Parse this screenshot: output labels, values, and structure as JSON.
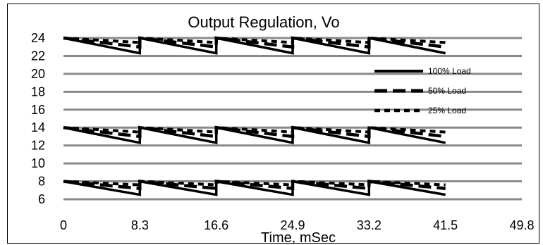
{
  "chart_data": {
    "type": "line",
    "title": "Output Regulation, Vo",
    "xlabel": "Time, mSec",
    "ylabel": "",
    "xlim": [
      0,
      49.8
    ],
    "ylim": [
      6,
      24
    ],
    "x_ticks": [
      "0",
      "8.3",
      "16.6",
      "24.9",
      "33.2",
      "41.5",
      "49.8"
    ],
    "y_ticks": [
      "6",
      "8",
      "10",
      "12",
      "14",
      "16",
      "18",
      "20",
      "22",
      "24"
    ],
    "grid": true,
    "legend_position": "right",
    "series": [
      {
        "name": "100% Load",
        "style": "solid",
        "color": "#000000",
        "segments": [
          {
            "x": [
              0,
              8.3,
              8.3,
              16.6,
              16.6,
              24.9,
              24.9,
              33.2,
              33.2,
              41.5
            ],
            "y": [
              24,
              22.3,
              24,
              22.3,
              24,
              22.3,
              24,
              22.3,
              24,
              22.3
            ]
          },
          {
            "x": [
              0,
              8.3,
              8.3,
              16.6,
              16.6,
              24.9,
              24.9,
              33.2,
              33.2,
              41.5
            ],
            "y": [
              14,
              12.3,
              14,
              12.3,
              14,
              12.3,
              14,
              12.3,
              14,
              12.3
            ]
          },
          {
            "x": [
              0,
              8.3,
              8.3,
              16.6,
              16.6,
              24.9,
              24.9,
              33.2,
              33.2,
              41.5
            ],
            "y": [
              8,
              6.5,
              8,
              6.5,
              8,
              6.5,
              8,
              6.5,
              8,
              6.5
            ]
          }
        ]
      },
      {
        "name": "50% Load",
        "style": "dashed",
        "color": "#000000",
        "segments": [
          {
            "x": [
              0,
              8.3,
              8.3,
              16.6,
              16.6,
              24.9,
              24.9,
              33.2,
              33.2,
              41.5
            ],
            "y": [
              24,
              23.0,
              24,
              23.0,
              24,
              23.0,
              24,
              23.0,
              24,
              23.0
            ]
          },
          {
            "x": [
              0,
              8.3,
              8.3,
              16.6,
              16.6,
              24.9,
              24.9,
              33.2,
              33.2,
              41.5
            ],
            "y": [
              14,
              13.0,
              14,
              13.0,
              14,
              13.0,
              14,
              13.0,
              14,
              13.0
            ]
          },
          {
            "x": [
              0,
              8.3,
              8.3,
              16.6,
              16.6,
              24.9,
              24.9,
              33.2,
              33.2,
              41.5
            ],
            "y": [
              8,
              7.2,
              8,
              7.2,
              8,
              7.2,
              8,
              7.2,
              8,
              7.2
            ]
          }
        ]
      },
      {
        "name": "25% Load",
        "style": "dotted",
        "color": "#000000",
        "segments": [
          {
            "x": [
              0,
              8.3,
              8.3,
              16.6,
              16.6,
              24.9,
              24.9,
              33.2,
              33.2,
              41.5
            ],
            "y": [
              24,
              23.5,
              24,
              23.5,
              24,
              23.5,
              24,
              23.5,
              24,
              23.5
            ]
          },
          {
            "x": [
              0,
              8.3,
              8.3,
              16.6,
              16.6,
              24.9,
              24.9,
              33.2,
              33.2,
              41.5
            ],
            "y": [
              14,
              13.5,
              14,
              13.5,
              14,
              13.5,
              14,
              13.5,
              14,
              13.5
            ]
          },
          {
            "x": [
              0,
              8.3,
              8.3,
              16.6,
              16.6,
              24.9,
              24.9,
              33.2,
              33.2,
              41.5
            ],
            "y": [
              8,
              7.6,
              8,
              7.6,
              8,
              7.6,
              8,
              7.6,
              8,
              7.6
            ]
          }
        ]
      }
    ]
  }
}
